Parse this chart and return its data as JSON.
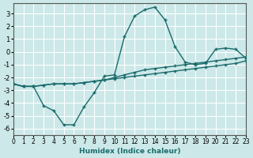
{
  "xlabel": "Humidex (Indice chaleur)",
  "bg_color": "#cce8e8",
  "grid_color": "#ffffff",
  "line_color": "#1a6b6b",
  "xlim": [
    0,
    23
  ],
  "ylim": [
    -6.5,
    3.8
  ],
  "yticks": [
    3,
    2,
    1,
    0,
    -1,
    -2,
    -3,
    -4,
    -5,
    -6
  ],
  "xticks": [
    0,
    1,
    2,
    3,
    4,
    5,
    6,
    7,
    8,
    9,
    10,
    11,
    12,
    13,
    14,
    15,
    16,
    17,
    18,
    19,
    20,
    21,
    22,
    23
  ],
  "series1_x": [
    0,
    1,
    2,
    3,
    4,
    5,
    6,
    7,
    8,
    9,
    10,
    11,
    12,
    13,
    14,
    15,
    16,
    17,
    18,
    19,
    20,
    21,
    22,
    23
  ],
  "series1_y": [
    -2.5,
    -2.7,
    -2.7,
    -2.6,
    -2.5,
    -2.5,
    -2.5,
    -2.4,
    -2.3,
    -2.2,
    -2.1,
    -2.0,
    -1.9,
    -1.8,
    -1.7,
    -1.6,
    -1.5,
    -1.4,
    -1.3,
    -1.2,
    -1.1,
    -1.0,
    -0.9,
    -0.7
  ],
  "series2_x": [
    0,
    1,
    2,
    3,
    4,
    5,
    6,
    7,
    8,
    9,
    10,
    11,
    12,
    13,
    14,
    15,
    16,
    17,
    18,
    19,
    20,
    21,
    22,
    23
  ],
  "series2_y": [
    -2.5,
    -2.7,
    -2.7,
    -2.6,
    -2.5,
    -2.5,
    -2.5,
    -2.4,
    -2.3,
    -2.2,
    -2.0,
    -1.8,
    -1.6,
    -1.4,
    -1.3,
    -1.2,
    -1.1,
    -1.0,
    -0.9,
    -0.8,
    -0.7,
    -0.6,
    -0.5,
    -0.4
  ],
  "series3_x": [
    0,
    1,
    2,
    3,
    4,
    5,
    6,
    7,
    8,
    9,
    10,
    11,
    12,
    13,
    14,
    15,
    16,
    17,
    18,
    19,
    20,
    21,
    22,
    23
  ],
  "series3_y": [
    -2.5,
    -2.7,
    -2.7,
    -4.2,
    -4.6,
    -5.7,
    -5.7,
    -4.3,
    -3.2,
    -1.9,
    -1.8,
    1.2,
    2.8,
    3.3,
    3.5,
    2.5,
    0.4,
    -0.8,
    -1.0,
    -0.9,
    0.2,
    0.3,
    0.2,
    -0.5
  ]
}
